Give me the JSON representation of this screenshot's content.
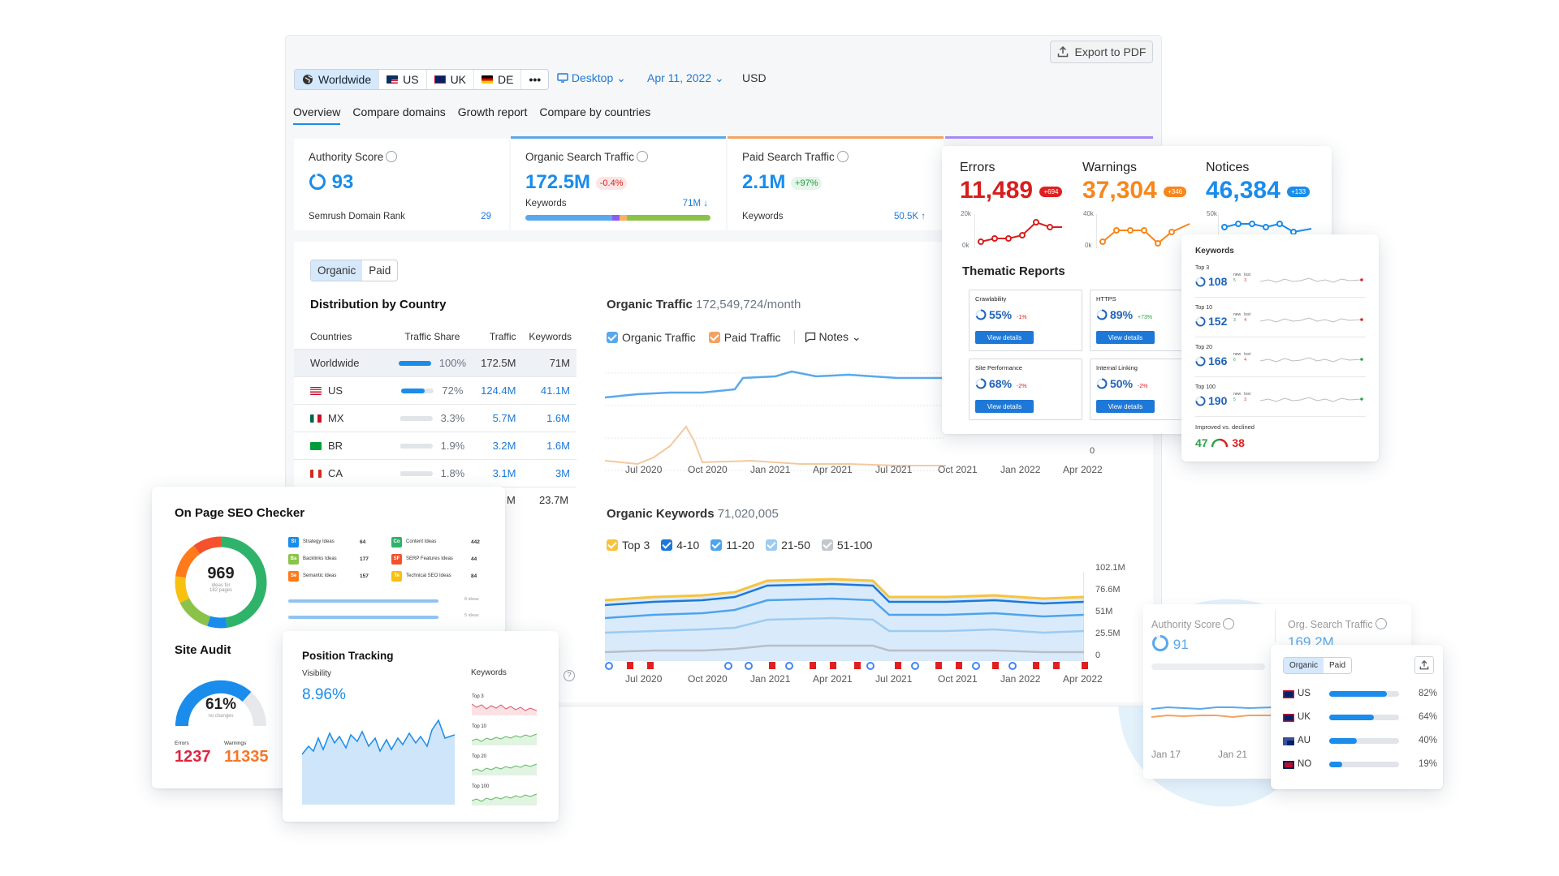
{
  "toolbar": {
    "export_label": "Export to PDF",
    "databases": [
      "Worldwide",
      "US",
      "UK",
      "DE"
    ],
    "more": "•••",
    "device": "Desktop",
    "date": "Apr 11, 2022",
    "currency": "USD"
  },
  "nav": [
    "Overview",
    "Compare domains",
    "Growth report",
    "Compare by countries"
  ],
  "kpis": {
    "authority": {
      "label": "Authority Score",
      "value": "93",
      "sub": "Semrush Domain Rank",
      "subval": "29"
    },
    "organic": {
      "label": "Organic Search Traffic",
      "value": "172.5M",
      "badge": "-0.4%",
      "sub": "Keywords",
      "subval": "71M ↓"
    },
    "paid": {
      "label": "Paid Search Traffic",
      "value": "2.1M",
      "badge": "+97%",
      "sub": "Keywords",
      "subval": "50.5K ↑"
    }
  },
  "content": {
    "toggle": [
      "Organic",
      "Paid"
    ],
    "dist_title": "Distribution by Country",
    "dist_headers": [
      "Countries",
      "Traffic Share",
      "Traffic",
      "Keywords"
    ],
    "dist_rows": [
      {
        "country": "Worldwide",
        "share": "100%",
        "share_val": 100,
        "traffic": "172.5M",
        "keywords": "71M"
      },
      {
        "country": "US",
        "share": "72%",
        "share_val": 72,
        "traffic": "124.4M",
        "keywords": "41.1M"
      },
      {
        "country": "MX",
        "share": "3.3%",
        "share_val": 3.3,
        "traffic": "5.7M",
        "keywords": "1.6M"
      },
      {
        "country": "BR",
        "share": "1.9%",
        "share_val": 1.9,
        "traffic": "3.2M",
        "keywords": "1.6M"
      },
      {
        "country": "CA",
        "share": "1.8%",
        "share_val": 1.8,
        "traffic": "3.1M",
        "keywords": "3M"
      }
    ],
    "dist_extra": {
      "traffic": "M",
      "keywords": "23.7M"
    },
    "ot_title": "Organic Traffic",
    "ot_value": "172,549,724/month",
    "ot_legend": [
      "Organic Traffic",
      "Paid Traffic",
      "Notes"
    ],
    "ot_zero": "0",
    "ok_title": "Organic Keywords",
    "ok_value": "71,020,005",
    "ok_legend": [
      "Top 3",
      "4-10",
      "11-20",
      "21-50",
      "51-100"
    ],
    "ok_yticks": [
      "102.1M",
      "76.6M",
      "51M",
      "25.5M",
      "0"
    ],
    "xticks": [
      "Jul 2020",
      "Oct 2020",
      "Jan 2021",
      "Apr 2021",
      "Jul 2021",
      "Oct 2021",
      "Jan 2022",
      "Apr 2022"
    ]
  },
  "site_health": {
    "errors": {
      "label": "Errors",
      "value": "11,489",
      "badge": "+694",
      "ytop": "20k",
      "ybot": "0k"
    },
    "warnings": {
      "label": "Warnings",
      "value": "37,304",
      "badge": "+346",
      "ytop": "40k",
      "ybot": "0k"
    },
    "notices": {
      "label": "Notices",
      "value": "46,384",
      "badge": "+133",
      "ytop": "50k"
    },
    "thematic_title": "Thematic Reports",
    "reports": [
      {
        "name": "Crawlability",
        "value": "55%",
        "delta": "-1%"
      },
      {
        "name": "HTTPS",
        "value": "89%",
        "delta": "+73%"
      },
      {
        "name": "Site Performance",
        "value": "68%",
        "delta": "-2%"
      },
      {
        "name": "Internal Linking",
        "value": "50%",
        "delta": "-2%"
      }
    ],
    "view_details": "View details"
  },
  "keywords_card": {
    "title": "Keywords",
    "rows": [
      {
        "label": "Top 3",
        "value": "108",
        "new": "5",
        "lost": "3"
      },
      {
        "label": "Top 10",
        "value": "152",
        "new": "3",
        "lost": "4"
      },
      {
        "label": "Top 20",
        "value": "166",
        "new": "6",
        "lost": "4"
      },
      {
        "label": "Top 100",
        "value": "190",
        "new": "5",
        "lost": "3"
      }
    ],
    "new_label": "new",
    "lost_label": "lost",
    "improved_label": "Improved vs. declined",
    "improved": "47",
    "declined": "38"
  },
  "onpage": {
    "title": "On Page SEO Checker",
    "total": "969",
    "total_sub1": "ideas for",
    "total_sub2": "182 pages",
    "ideas": [
      {
        "code": "St",
        "name": "Strategy Ideas",
        "count": "64",
        "color": "#1a8ceb"
      },
      {
        "code": "Co",
        "name": "Content Ideas",
        "count": "442",
        "color": "#2fb36b"
      },
      {
        "code": "Ba",
        "name": "Backlinks Ideas",
        "count": "177",
        "color": "#8bc34a"
      },
      {
        "code": "SF",
        "name": "SERP Features Ideas",
        "count": "44",
        "color": "#f4512c"
      },
      {
        "code": "Se",
        "name": "Semantic Ideas",
        "count": "157",
        "color": "#ff7a1a"
      },
      {
        "code": "Te",
        "name": "Technical SEO Ideas",
        "count": "84",
        "color": "#f8c00f"
      }
    ],
    "bar1": "8 ideas",
    "bar2": "5 ideas"
  },
  "site_audit": {
    "title": "Site Audit",
    "value": "61%",
    "sub": "no changes",
    "errors_label": "Errors",
    "errors": "1237",
    "warnings_label": "Warnings",
    "warnings": "11335"
  },
  "position_tracking": {
    "title": "Position Tracking",
    "visibility_label": "Visibility",
    "visibility": "8.96%",
    "keywords_label": "Keywords",
    "rows": [
      "Top 3",
      "Top 10",
      "Top 20",
      "Top 100"
    ]
  },
  "compare": {
    "authority_label": "Authority Score",
    "authority": "91",
    "traffic_label": "Org. Search Traffic",
    "traffic": "169.2M",
    "xticks": [
      "Jan 17",
      "Jan 21"
    ]
  },
  "geo": {
    "toggle": [
      "Organic",
      "Paid"
    ],
    "rows": [
      {
        "code": "US",
        "pct": "82%",
        "val": 82
      },
      {
        "code": "UK",
        "pct": "64%",
        "val": 64
      },
      {
        "code": "AU",
        "pct": "40%",
        "val": 40
      },
      {
        "code": "NO",
        "pct": "19%",
        "val": 19
      }
    ]
  }
}
